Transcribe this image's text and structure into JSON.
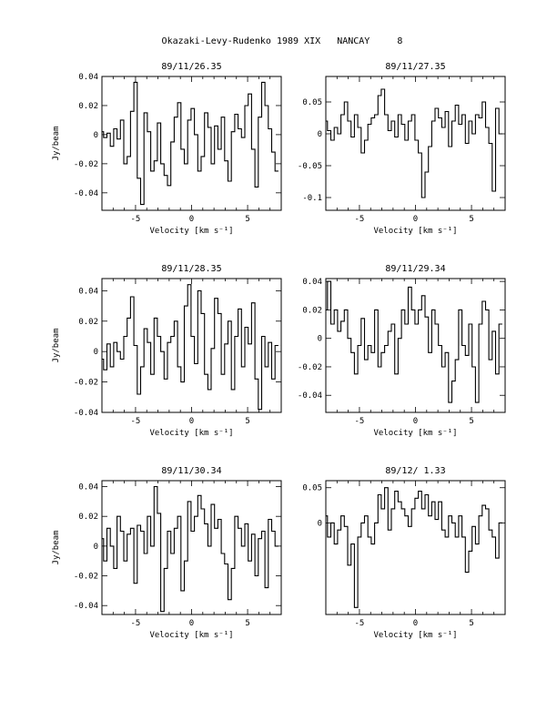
{
  "title": "Okazaki-Levy-Rudenko 1989 XIX   NANCAY     8",
  "chart_data": [
    {
      "type": "line",
      "title": "89/11/26.35",
      "xlabel": "Velocity [km s⁻¹]",
      "ylabel": "Jy/beam",
      "xlim": [
        -8,
        8
      ],
      "ylim": [
        -0.052,
        0.04
      ],
      "xticks": [
        -5,
        0,
        5
      ],
      "xtick_labels": [
        "-5",
        "0",
        "5"
      ],
      "yticks": [
        -0.04,
        -0.02,
        0,
        0.02,
        0.04
      ],
      "ytick_labels": [
        "-0.04",
        "-0.02",
        "0",
        "0.02",
        "0.04"
      ],
      "x": [
        -8.0,
        -7.7,
        -7.4,
        -7.1,
        -6.8,
        -6.5,
        -6.2,
        -5.9,
        -5.6,
        -5.3,
        -5.0,
        -4.7,
        -4.4,
        -4.1,
        -3.8,
        -3.5,
        -3.2,
        -2.9,
        -2.6,
        -2.3,
        -2.0,
        -1.7,
        -1.4,
        -1.1,
        -0.8,
        -0.5,
        -0.2,
        0.1,
        0.4,
        0.7,
        1.0,
        1.3,
        1.6,
        1.9,
        2.2,
        2.5,
        2.8,
        3.1,
        3.4,
        3.7,
        4.0,
        4.3,
        4.6,
        4.9,
        5.2,
        5.5,
        5.8,
        6.1,
        6.4,
        6.7,
        7.0,
        7.3,
        7.6
      ],
      "values": [
        0.002,
        -0.002,
        0.001,
        -0.008,
        0.004,
        -0.003,
        0.01,
        -0.02,
        -0.015,
        0.016,
        0.036,
        -0.03,
        -0.048,
        0.015,
        0.002,
        -0.025,
        -0.018,
        0.008,
        -0.02,
        -0.028,
        -0.035,
        -0.005,
        0.012,
        0.022,
        -0.01,
        -0.02,
        0.01,
        0.018,
        0.0,
        -0.025,
        -0.015,
        0.015,
        0.005,
        -0.02,
        0.006,
        -0.01,
        0.012,
        -0.018,
        -0.032,
        0.002,
        0.014,
        0.004,
        -0.002,
        0.02,
        0.028,
        -0.01,
        -0.036,
        0.012,
        0.036,
        0.02,
        0.004,
        -0.012,
        -0.025
      ]
    },
    {
      "type": "line",
      "title": "89/11/27.35",
      "xlabel": "Velocity [km s⁻¹]",
      "ylabel": "",
      "xlim": [
        -8,
        8
      ],
      "ylim": [
        -0.12,
        0.09
      ],
      "xticks": [
        -5,
        0,
        5
      ],
      "xtick_labels": [
        "-5",
        "0",
        "5"
      ],
      "yticks": [
        -0.1,
        -0.05,
        0,
        0.05
      ],
      "ytick_labels": [
        "-0.1",
        "-0.05",
        "0",
        "0.05"
      ],
      "x": [
        -8.0,
        -7.7,
        -7.4,
        -7.1,
        -6.8,
        -6.5,
        -6.2,
        -5.9,
        -5.6,
        -5.3,
        -5.0,
        -4.7,
        -4.4,
        -4.1,
        -3.8,
        -3.5,
        -3.2,
        -2.9,
        -2.6,
        -2.3,
        -2.0,
        -1.7,
        -1.4,
        -1.1,
        -0.8,
        -0.5,
        -0.2,
        0.1,
        0.4,
        0.7,
        1.0,
        1.3,
        1.6,
        1.9,
        2.2,
        2.5,
        2.8,
        3.1,
        3.4,
        3.7,
        4.0,
        4.3,
        4.6,
        4.9,
        5.2,
        5.5,
        5.8,
        6.1,
        6.4,
        6.7,
        7.0,
        7.3,
        7.6
      ],
      "values": [
        0.02,
        0.005,
        -0.01,
        0.01,
        0.0,
        0.03,
        0.05,
        0.02,
        -0.005,
        0.03,
        0.01,
        -0.03,
        -0.01,
        0.015,
        0.025,
        0.03,
        0.06,
        0.07,
        0.03,
        0.005,
        0.02,
        -0.005,
        0.03,
        0.015,
        -0.01,
        0.02,
        0.03,
        -0.01,
        -0.03,
        -0.1,
        -0.06,
        -0.02,
        0.02,
        0.04,
        0.025,
        0.01,
        0.035,
        -0.02,
        0.02,
        0.045,
        0.015,
        0.03,
        -0.015,
        0.02,
        0.0,
        0.03,
        0.025,
        0.05,
        0.01,
        -0.015,
        -0.09,
        0.04,
        0.0
      ]
    },
    {
      "type": "line",
      "title": "89/11/28.35",
      "xlabel": "Velocity [km s⁻¹]",
      "ylabel": "Jy/beam",
      "xlim": [
        -8,
        8
      ],
      "ylim": [
        -0.04,
        0.048
      ],
      "xticks": [
        -5,
        0,
        5
      ],
      "xtick_labels": [
        "-5",
        "0",
        "5"
      ],
      "yticks": [
        -0.04,
        -0.02,
        0,
        0.02,
        0.04
      ],
      "ytick_labels": [
        "-0.04",
        "-0.02",
        "0",
        "0.02",
        "0.04"
      ],
      "x": [
        -8.0,
        -7.7,
        -7.4,
        -7.1,
        -6.8,
        -6.5,
        -6.2,
        -5.9,
        -5.6,
        -5.3,
        -5.0,
        -4.7,
        -4.4,
        -4.1,
        -3.8,
        -3.5,
        -3.2,
        -2.9,
        -2.6,
        -2.3,
        -2.0,
        -1.7,
        -1.4,
        -1.1,
        -0.8,
        -0.5,
        -0.2,
        0.1,
        0.4,
        0.7,
        1.0,
        1.3,
        1.6,
        1.9,
        2.2,
        2.5,
        2.8,
        3.1,
        3.4,
        3.7,
        4.0,
        4.3,
        4.6,
        4.9,
        5.2,
        5.5,
        5.8,
        6.1,
        6.4,
        6.7,
        7.0,
        7.3,
        7.6
      ],
      "values": [
        -0.005,
        -0.012,
        0.005,
        -0.01,
        0.006,
        0.0,
        -0.005,
        0.01,
        0.022,
        0.036,
        0.004,
        -0.028,
        -0.01,
        0.015,
        0.006,
        -0.015,
        0.022,
        0.01,
        0.0,
        -0.018,
        0.006,
        0.01,
        0.02,
        -0.01,
        -0.02,
        0.03,
        0.044,
        0.01,
        -0.008,
        0.04,
        0.025,
        -0.015,
        -0.025,
        0.002,
        0.035,
        0.025,
        -0.015,
        0.005,
        0.02,
        -0.025,
        0.01,
        0.028,
        -0.01,
        0.016,
        0.005,
        0.032,
        -0.018,
        -0.038,
        0.01,
        -0.01,
        0.006,
        -0.018,
        0.004
      ]
    },
    {
      "type": "line",
      "title": "89/11/29.34",
      "xlabel": "Velocity [km s⁻¹]",
      "ylabel": "",
      "xlim": [
        -8,
        8
      ],
      "ylim": [
        -0.052,
        0.042
      ],
      "xticks": [
        -5,
        0,
        5
      ],
      "xtick_labels": [
        "-5",
        "0",
        "5"
      ],
      "yticks": [
        -0.04,
        -0.02,
        0,
        0.02,
        0.04
      ],
      "ytick_labels": [
        "-0.04",
        "-0.02",
        "0",
        "0.02",
        "0.04"
      ],
      "x": [
        -8.0,
        -7.7,
        -7.4,
        -7.1,
        -6.8,
        -6.5,
        -6.2,
        -5.9,
        -5.6,
        -5.3,
        -5.0,
        -4.7,
        -4.4,
        -4.1,
        -3.8,
        -3.5,
        -3.2,
        -2.9,
        -2.6,
        -2.3,
        -2.0,
        -1.7,
        -1.4,
        -1.1,
        -0.8,
        -0.5,
        -0.2,
        0.1,
        0.4,
        0.7,
        1.0,
        1.3,
        1.6,
        1.9,
        2.2,
        2.5,
        2.8,
        3.1,
        3.4,
        3.7,
        4.0,
        4.3,
        4.6,
        4.9,
        5.2,
        5.5,
        5.8,
        6.1,
        6.4,
        6.7,
        7.0,
        7.3,
        7.6
      ],
      "values": [
        0.02,
        0.04,
        0.01,
        0.02,
        0.005,
        0.012,
        0.02,
        0.0,
        -0.01,
        -0.025,
        -0.005,
        0.014,
        -0.015,
        -0.005,
        -0.01,
        0.02,
        -0.02,
        -0.01,
        -0.005,
        0.005,
        0.01,
        -0.025,
        0.0,
        0.02,
        0.01,
        0.036,
        0.02,
        0.01,
        0.02,
        0.03,
        0.015,
        -0.01,
        0.02,
        0.01,
        -0.005,
        -0.02,
        -0.01,
        -0.045,
        -0.03,
        -0.015,
        0.02,
        -0.005,
        -0.012,
        0.01,
        -0.02,
        -0.045,
        0.01,
        0.026,
        0.02,
        -0.015,
        0.005,
        -0.025,
        0.01
      ]
    },
    {
      "type": "line",
      "title": "89/11/30.34",
      "xlabel": "Velocity [km s⁻¹]",
      "ylabel": "Jy/beam",
      "xlim": [
        -8,
        8
      ],
      "ylim": [
        -0.046,
        0.044
      ],
      "xticks": [
        -5,
        0,
        5
      ],
      "xtick_labels": [
        "-5",
        "0",
        "5"
      ],
      "yticks": [
        -0.04,
        -0.02,
        0,
        0.02,
        0.04
      ],
      "ytick_labels": [
        "-0.04",
        "-0.02",
        "0",
        "0.02",
        "0.04"
      ],
      "x": [
        -8.0,
        -7.7,
        -7.4,
        -7.1,
        -6.8,
        -6.5,
        -6.2,
        -5.9,
        -5.6,
        -5.3,
        -5.0,
        -4.7,
        -4.4,
        -4.1,
        -3.8,
        -3.5,
        -3.2,
        -2.9,
        -2.6,
        -2.3,
        -2.0,
        -1.7,
        -1.4,
        -1.1,
        -0.8,
        -0.5,
        -0.2,
        0.1,
        0.4,
        0.7,
        1.0,
        1.3,
        1.6,
        1.9,
        2.2,
        2.5,
        2.8,
        3.1,
        3.4,
        3.7,
        4.0,
        4.3,
        4.6,
        4.9,
        5.2,
        5.5,
        5.8,
        6.1,
        6.4,
        6.7,
        7.0,
        7.3,
        7.6
      ],
      "values": [
        0.005,
        -0.01,
        0.012,
        0.0,
        -0.015,
        0.02,
        0.01,
        -0.01,
        0.008,
        0.012,
        -0.025,
        0.014,
        0.01,
        -0.005,
        0.02,
        0.0,
        0.04,
        0.022,
        -0.044,
        -0.015,
        0.01,
        -0.005,
        0.012,
        0.02,
        -0.03,
        -0.01,
        0.03,
        0.01,
        0.02,
        0.034,
        0.025,
        0.015,
        0.0,
        0.028,
        0.012,
        0.018,
        -0.005,
        -0.012,
        -0.036,
        -0.015,
        0.02,
        0.012,
        0.0,
        0.015,
        -0.01,
        0.008,
        -0.02,
        0.005,
        0.01,
        -0.028,
        0.018,
        0.01,
        0.0
      ]
    },
    {
      "type": "line",
      "title": "89/12/ 1.33",
      "xlabel": "Velocity [km s⁻¹]",
      "ylabel": "",
      "xlim": [
        -8,
        8
      ],
      "ylim": [
        -0.13,
        0.06
      ],
      "xticks": [
        -5,
        0,
        5
      ],
      "xtick_labels": [
        "-5",
        "0",
        "5"
      ],
      "yticks": [
        0,
        0.05
      ],
      "ytick_labels": [
        "0",
        "0.05"
      ],
      "x": [
        -8.0,
        -7.7,
        -7.4,
        -7.1,
        -6.8,
        -6.5,
        -6.2,
        -5.9,
        -5.6,
        -5.3,
        -5.0,
        -4.7,
        -4.4,
        -4.1,
        -3.8,
        -3.5,
        -3.2,
        -2.9,
        -2.6,
        -2.3,
        -2.0,
        -1.7,
        -1.4,
        -1.1,
        -0.8,
        -0.5,
        -0.2,
        0.1,
        0.4,
        0.7,
        1.0,
        1.3,
        1.6,
        1.9,
        2.2,
        2.5,
        2.8,
        3.1,
        3.4,
        3.7,
        4.0,
        4.3,
        4.6,
        4.9,
        5.2,
        5.5,
        5.8,
        6.1,
        6.4,
        6.7,
        7.0,
        7.3,
        7.6
      ],
      "values": [
        0.01,
        -0.02,
        0.0,
        -0.03,
        -0.01,
        0.01,
        -0.005,
        -0.06,
        -0.03,
        -0.12,
        -0.02,
        0.0,
        0.01,
        -0.02,
        -0.03,
        0.0,
        0.04,
        0.02,
        0.05,
        -0.01,
        0.02,
        0.045,
        0.03,
        0.02,
        0.01,
        -0.005,
        0.02,
        0.035,
        0.045,
        0.02,
        0.04,
        0.01,
        0.03,
        0.005,
        0.03,
        -0.01,
        -0.02,
        0.01,
        0.0,
        -0.02,
        0.01,
        -0.02,
        -0.07,
        -0.04,
        -0.005,
        -0.03,
        0.01,
        0.025,
        0.02,
        -0.01,
        -0.02,
        -0.05,
        0.0
      ]
    }
  ]
}
